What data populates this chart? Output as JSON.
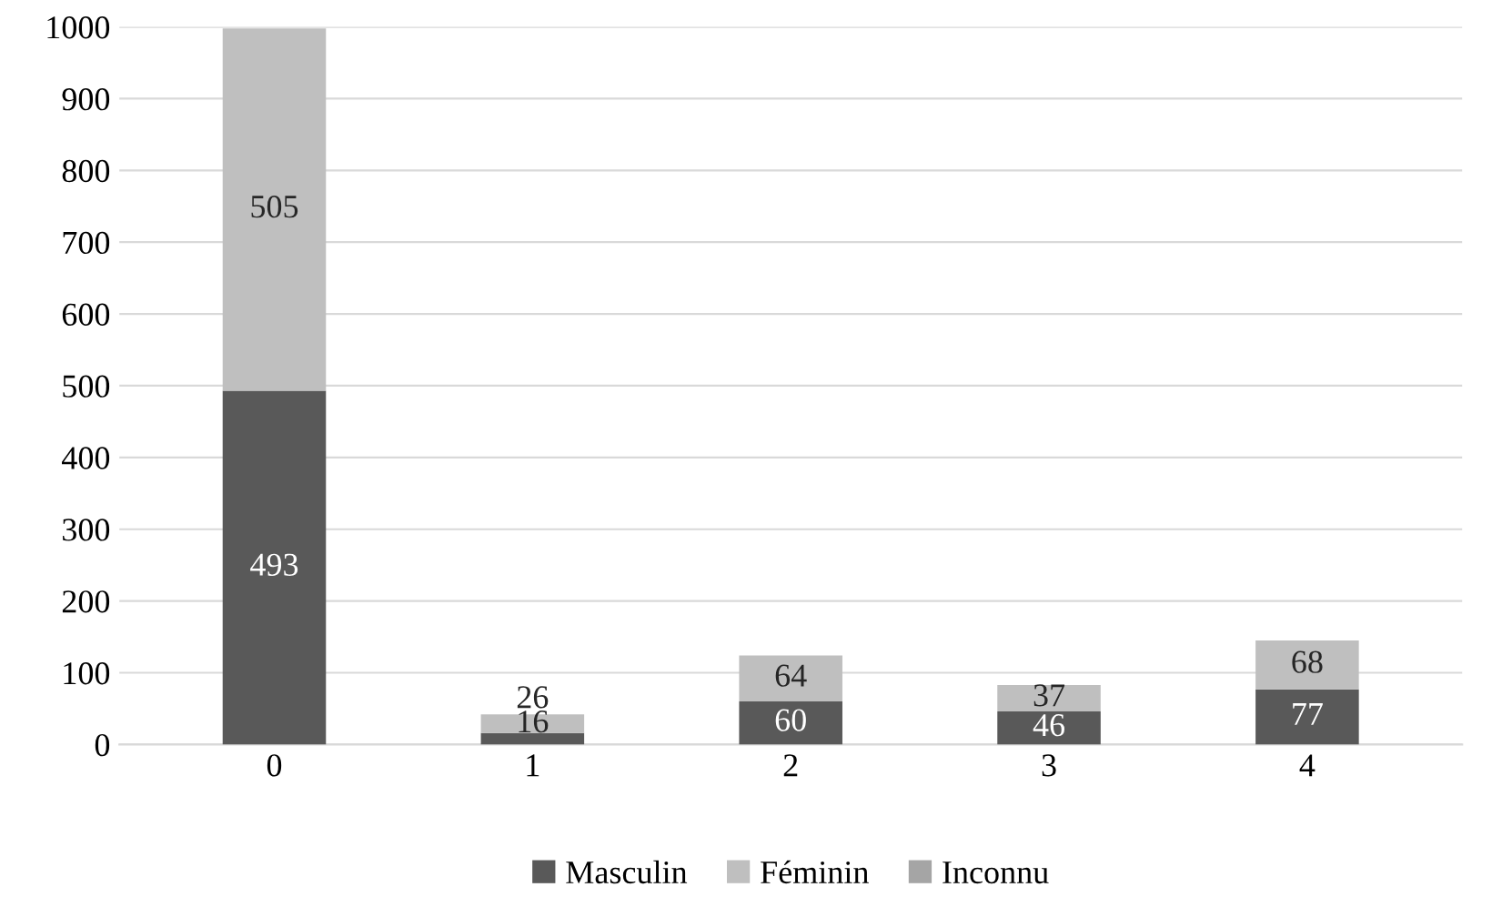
{
  "chart_data": {
    "type": "bar",
    "stacked": true,
    "categories": [
      "0",
      "1",
      "2",
      "3",
      "4"
    ],
    "series": [
      {
        "name": "Masculin",
        "color": "#595959",
        "values": [
          493,
          16,
          60,
          46,
          77
        ],
        "value_labels": [
          "493",
          "16",
          "60",
          "46",
          "77"
        ]
      },
      {
        "name": "Féminin",
        "color": "#bfbfbf",
        "values": [
          505,
          26,
          64,
          37,
          68
        ],
        "value_labels": [
          "505",
          "26",
          "64",
          "37",
          "68"
        ]
      },
      {
        "name": "Inconnu",
        "color": "#a5a5a5",
        "values": [
          null,
          null,
          null,
          null,
          null
        ]
      }
    ],
    "ylim": [
      0,
      1000
    ],
    "yticks": [
      0,
      100,
      200,
      300,
      400,
      500,
      600,
      700,
      800,
      900,
      1000
    ],
    "grid": "y",
    "legend": "bottom"
  }
}
